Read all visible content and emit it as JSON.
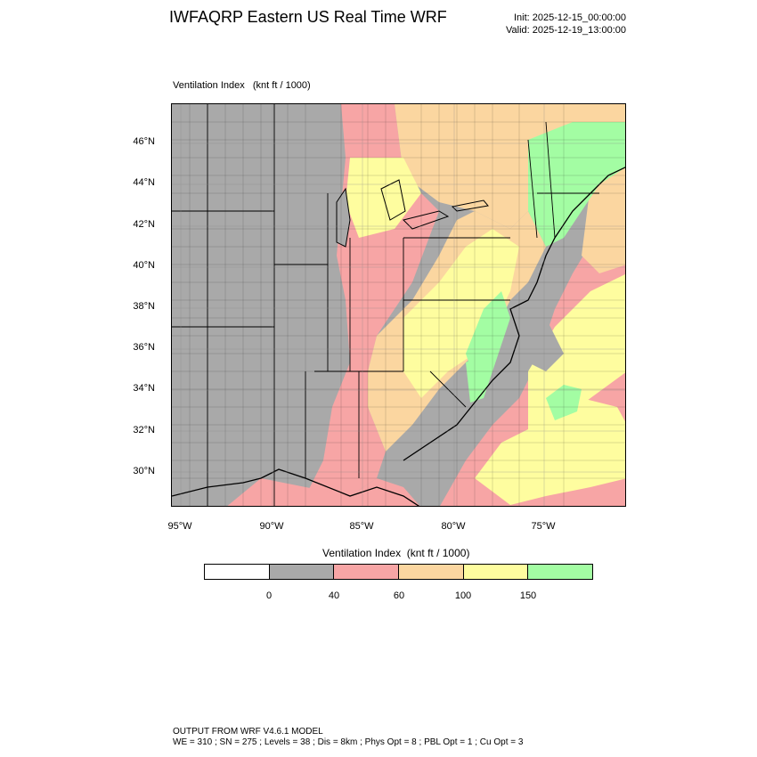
{
  "title": "IWFAQRP Eastern US Real Time WRF",
  "init": "Init: 2025-12-15_00:00:00",
  "valid": "Valid: 2025-12-19_13:00:00",
  "plot_label": "Ventilation Index   (knt ft / 1000)",
  "lat_labels": [
    "46°N",
    "44°N",
    "42°N",
    "40°N",
    "38°N",
    "36°N",
    "34°N",
    "32°N",
    "30°N"
  ],
  "lon_labels": [
    "95°W",
    "90°W",
    "85°W",
    "80°W",
    "75°W"
  ],
  "legend": {
    "title": "Ventilation Index  (knt ft / 1000)",
    "ticks": [
      "0",
      "40",
      "60",
      "100",
      "150"
    ],
    "colors": [
      "#ffffff",
      "#a9a9a9",
      "#f7a5a5",
      "#fbd6a0",
      "#fefd9f",
      "#a3fda3"
    ]
  },
  "footer": {
    "line1": "OUTPUT FROM WRF V4.6.1 MODEL",
    "line2": "WE = 310 ; SN = 275 ; Levels = 38 ; Dis = 8km ; Phys Opt = 8 ; PBL Opt = 1 ; Cu Opt = 3"
  }
}
